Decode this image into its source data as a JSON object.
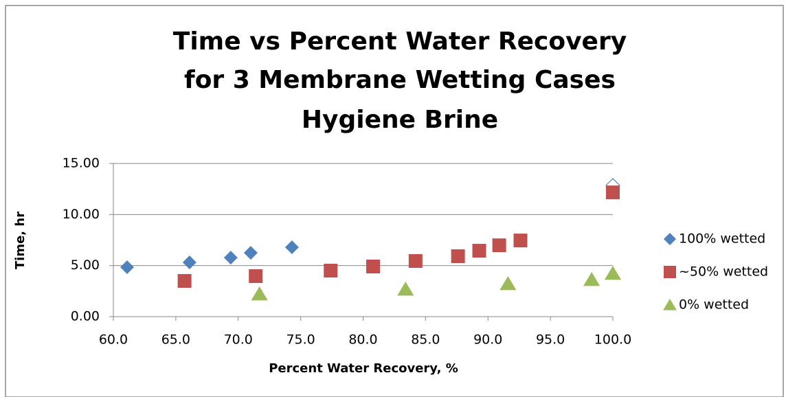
{
  "chart_data": {
    "type": "scatter",
    "title": [
      "Time vs Percent Water Recovery",
      "for 3 Membrane Wetting Cases",
      "Hygiene Brine"
    ],
    "x_label": "Percent Water Recovery, %",
    "y_label": "Time, hr",
    "xlim": [
      60,
      100
    ],
    "xticks": [
      {
        "value": 60,
        "label": "60.0"
      },
      {
        "value": 65,
        "label": "65.0"
      },
      {
        "value": 70,
        "label": "70.0"
      },
      {
        "value": 75,
        "label": "75.0"
      },
      {
        "value": 80,
        "label": "80.0"
      },
      {
        "value": 85,
        "label": "85.0"
      },
      {
        "value": 90,
        "label": "90.0"
      },
      {
        "value": 95,
        "label": "95.0"
      },
      {
        "value": 100,
        "label": "100.0"
      }
    ],
    "ylim": [
      0,
      15
    ],
    "yticks": [
      {
        "value": 0,
        "label": "0.00"
      },
      {
        "value": 5,
        "label": "5.00"
      },
      {
        "value": 10,
        "label": "10.00"
      },
      {
        "value": 15,
        "label": "15.00"
      }
    ],
    "grid": true,
    "legend": "right",
    "series": [
      {
        "name": "100% wetted",
        "color": "#4f81bd",
        "marker": "diamond",
        "x": [
          61.1,
          66.1,
          69.4,
          71.0,
          74.3,
          100.0
        ],
        "values": [
          4.84,
          5.31,
          5.78,
          6.25,
          6.79,
          12.85
        ],
        "hollow_points": [
          5
        ]
      },
      {
        "name": "~50% wetted",
        "color": "#c0504d",
        "marker": "square",
        "x": [
          65.7,
          71.4,
          77.4,
          80.8,
          84.2,
          87.6,
          89.3,
          90.9,
          92.6,
          100.0
        ],
        "values": [
          3.5,
          3.97,
          4.51,
          4.91,
          5.45,
          5.92,
          6.46,
          6.99,
          7.46,
          12.17
        ]
      },
      {
        "name": "0% wetted",
        "color": "#9bbb59",
        "marker": "triangle",
        "x": [
          71.7,
          83.4,
          91.6,
          98.3,
          100.0
        ],
        "values": [
          2.22,
          2.69,
          3.23,
          3.63,
          4.24
        ]
      }
    ]
  }
}
